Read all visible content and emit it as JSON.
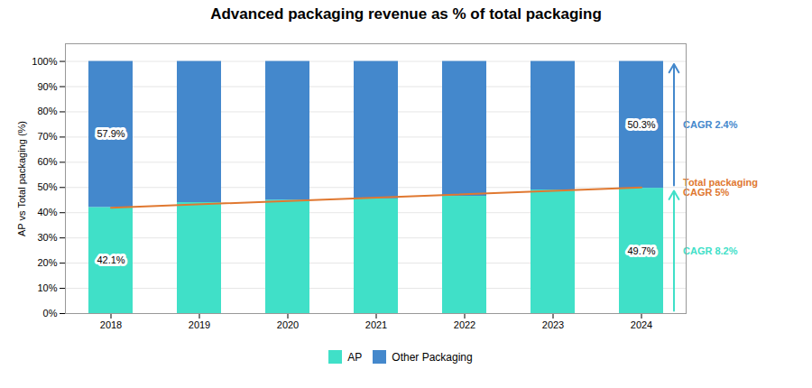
{
  "chart_data": {
    "type": "bar",
    "title": "Advanced packaging revenue as % of total packaging",
    "categories": [
      "2018",
      "2019",
      "2020",
      "2021",
      "2022",
      "2023",
      "2024"
    ],
    "series": [
      {
        "name": "AP",
        "color": "#40E0C8",
        "values": [
          42.1,
          44.0,
          45.0,
          45.5,
          46.5,
          49.0,
          49.7
        ],
        "value_labels": [
          "42.1%",
          null,
          null,
          null,
          null,
          null,
          "49.7%"
        ],
        "annotation": "CAGR 8.2%"
      },
      {
        "name": "Other Packaging",
        "color": "#4488CC",
        "values": [
          57.9,
          56.0,
          55.0,
          54.5,
          53.5,
          51.0,
          50.3
        ],
        "value_labels": [
          "57.9%",
          null,
          null,
          null,
          null,
          null,
          "50.3%"
        ],
        "annotation": "CAGR 2.4%"
      }
    ],
    "trend_line": {
      "x": [
        "2018",
        "2024"
      ],
      "values": [
        42.0,
        50.0
      ],
      "color": "#E07830",
      "label": "Total packaging\nCAGR 5%"
    },
    "ylabel": "AP vs Total packaging (%)",
    "ylim": [
      0,
      107
    ],
    "yticks": [
      {
        "value": 0,
        "label": "0%"
      },
      {
        "value": 10,
        "label": "10%"
      },
      {
        "value": 20,
        "label": "20%"
      },
      {
        "value": 30,
        "label": "30%"
      },
      {
        "value": 40,
        "label": "40%"
      },
      {
        "value": 50,
        "label": "50%"
      },
      {
        "value": 60,
        "label": "60%"
      },
      {
        "value": 70,
        "label": "70%"
      },
      {
        "value": 80,
        "label": "80%"
      },
      {
        "value": 90,
        "label": "90%"
      },
      {
        "value": 100,
        "label": "100%"
      }
    ],
    "grid": true,
    "stacked": true,
    "legend": "bottom"
  }
}
